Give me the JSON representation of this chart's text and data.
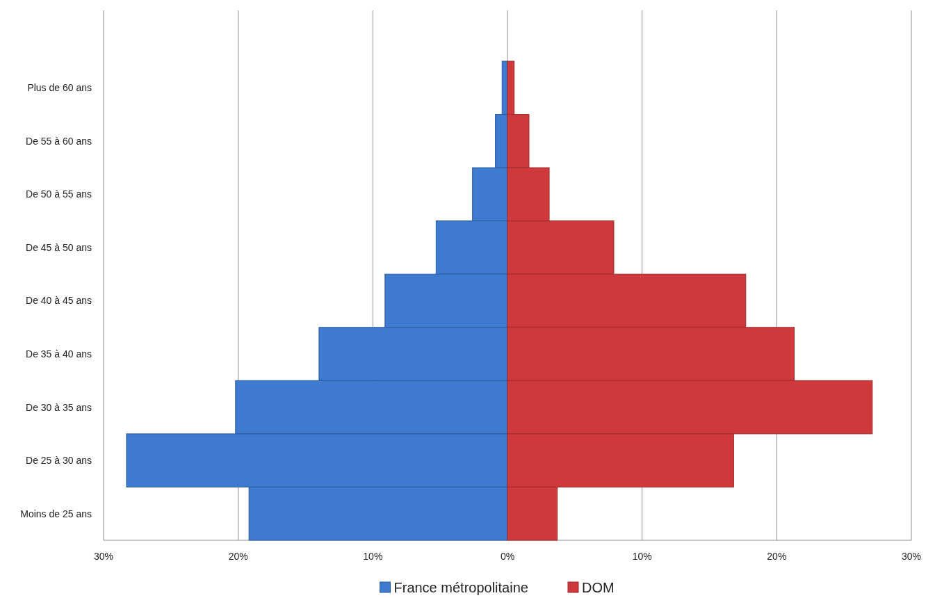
{
  "chart_data": {
    "type": "bar",
    "orientation": "horizontal",
    "stacked": true,
    "categories": [
      "Plus de 60 ans",
      "De 55 à 60 ans",
      "De 50 à 55 ans",
      "De 45 à 50 ans",
      "De 40 à 45 ans",
      "De 35 à 40 ans",
      "De 30 à 35 ans",
      "De 25 à 30 ans",
      "Moins de 25 ans"
    ],
    "series": [
      {
        "name": "France métropolitaine",
        "color": "#3d7ad0",
        "values": [
          -0.4,
          -0.9,
          -2.6,
          -5.3,
          -9.1,
          -14.0,
          -20.2,
          -28.3,
          -19.2
        ]
      },
      {
        "name": "DOM",
        "color": "#d0393b",
        "values": [
          0.5,
          1.6,
          3.1,
          7.9,
          17.7,
          21.3,
          27.1,
          16.8,
          3.7
        ]
      }
    ],
    "xlim": [
      -30,
      30
    ],
    "xticks": [
      {
        "value": -30,
        "label": "30%"
      },
      {
        "value": -20,
        "label": "20%"
      },
      {
        "value": -10,
        "label": "10%"
      },
      {
        "value": 0,
        "label": "0%"
      },
      {
        "value": 10,
        "label": "10%"
      },
      {
        "value": 20,
        "label": "20%"
      },
      {
        "value": 30,
        "label": "30%"
      }
    ],
    "grid": "x",
    "legend": "bottom"
  }
}
